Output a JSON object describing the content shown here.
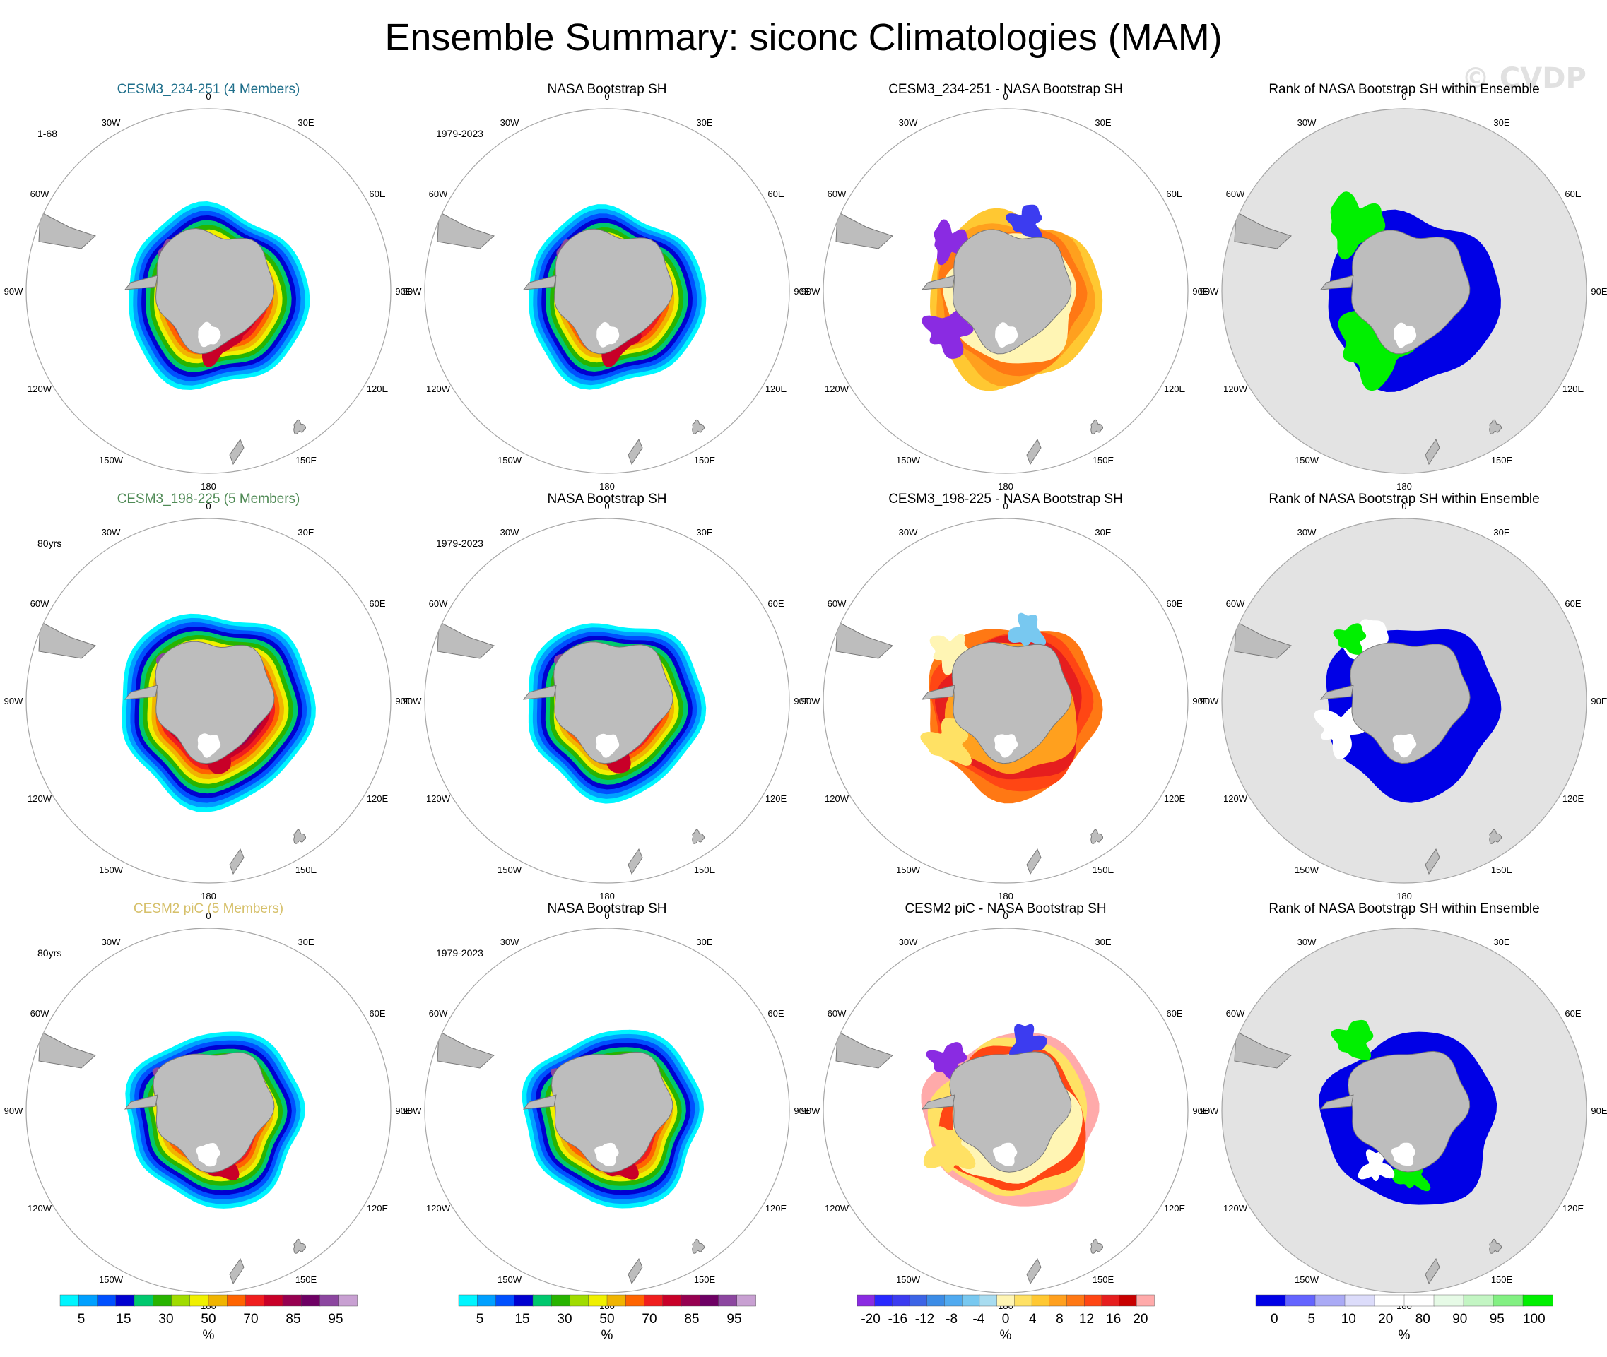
{
  "title": "Ensemble Summary: siconc Climatologies (MAM)",
  "watermark": "© CVDP",
  "colors": {
    "land": "#bdbdbd",
    "rank_background": "#e3e3e3",
    "title_row1": "#1f6f8b",
    "title_row2": "#4f8a55",
    "title_row3": "#d6c06a",
    "circle": "#a6a6a6"
  },
  "longitude_labels": [
    "0",
    "30E",
    "60E",
    "90E",
    "120E",
    "150E",
    "180",
    "150W",
    "120W",
    "90W",
    "60W",
    "30W"
  ],
  "chart_data": [
    {
      "type": "heatmap",
      "row": 1,
      "panels": [
        {
          "kind": "ensemble_mean",
          "title": "CESM3_234-251 (4 Members)",
          "period": "1-68",
          "title_color": "#1f6f8b",
          "extent_scale": 1.0,
          "variant": 1
        },
        {
          "kind": "observation",
          "title": "NASA Bootstrap SH",
          "period": "1979-2023",
          "variant": 1
        },
        {
          "kind": "difference",
          "title": "CESM3_234-251 - NASA Bootstrap SH",
          "variant": 1
        },
        {
          "kind": "rank",
          "title": "Rank of NASA Bootstrap SH within Ensemble",
          "variant": 1
        }
      ]
    },
    {
      "type": "heatmap",
      "row": 2,
      "panels": [
        {
          "kind": "ensemble_mean",
          "title": "CESM3_198-225 (5 Members)",
          "period": "80yrs",
          "title_color": "#4f8a55",
          "extent_scale": 1.07,
          "variant": 2
        },
        {
          "kind": "observation",
          "title": "NASA Bootstrap SH",
          "period": "1979-2023",
          "variant": 2
        },
        {
          "kind": "difference",
          "title": "CESM3_198-225 - NASA Bootstrap SH",
          "variant": 2
        },
        {
          "kind": "rank",
          "title": "Rank of NASA Bootstrap SH within Ensemble",
          "variant": 2
        }
      ]
    },
    {
      "type": "heatmap",
      "row": 3,
      "panels": [
        {
          "kind": "ensemble_mean",
          "title": "CESM2 piC (5 Members)",
          "period": "80yrs",
          "title_color": "#d6c06a",
          "extent_scale": 0.97,
          "variant": 3
        },
        {
          "kind": "observation",
          "title": "NASA Bootstrap SH",
          "period": "1979-2023",
          "variant": 3
        },
        {
          "kind": "difference",
          "title": "CESM2 piC - NASA Bootstrap SH",
          "variant": 3
        },
        {
          "kind": "rank",
          "title": "Rank of NASA Bootstrap SH within Ensemble",
          "variant": 3
        }
      ]
    }
  ],
  "colorbars": [
    {
      "name": "climatology",
      "unit": "%",
      "colors": [
        "#00f5ff",
        "#00a0ff",
        "#0050ff",
        "#0000d0",
        "#00c86e",
        "#28b400",
        "#a0dc00",
        "#f0f000",
        "#f0b400",
        "#ff6400",
        "#f01e1e",
        "#c80028",
        "#960050",
        "#6e0064",
        "#8c46a0",
        "#c8a0d2"
      ],
      "tick_labels": [
        "5",
        "15",
        "30",
        "50",
        "70",
        "85",
        "95"
      ]
    },
    {
      "name": "climatology_obs",
      "unit": "%",
      "colors": [
        "#00f5ff",
        "#00a0ff",
        "#0050ff",
        "#0000d0",
        "#00c86e",
        "#28b400",
        "#a0dc00",
        "#f0f000",
        "#f0b400",
        "#ff6400",
        "#f01e1e",
        "#c80028",
        "#960050",
        "#6e0064",
        "#8c46a0",
        "#c8a0d2"
      ],
      "tick_labels": [
        "5",
        "15",
        "30",
        "50",
        "70",
        "85",
        "95"
      ]
    },
    {
      "name": "difference",
      "unit": "%",
      "colors": [
        "#8a2be2",
        "#2828ff",
        "#3c3cf0",
        "#3c64e6",
        "#3c8ce6",
        "#50aaf0",
        "#78c8f0",
        "#a8dcf0",
        "#fff5b4",
        "#ffe164",
        "#ffc832",
        "#ffa01e",
        "#ff7814",
        "#ff4614",
        "#e61e1e",
        "#c80000",
        "#ffaaaa"
      ],
      "tick_labels": [
        "-20",
        "-16",
        "-12",
        "-8",
        "-4",
        "0",
        "4",
        "8",
        "12",
        "16",
        "20"
      ]
    },
    {
      "name": "rank",
      "unit": "%",
      "colors": [
        "#0000e6",
        "#6464ff",
        "#aaaaf5",
        "#dcdcfa",
        "#ffffff",
        "#ffffff",
        "#e6fae6",
        "#c3f5c3",
        "#82f082",
        "#00f000"
      ],
      "tick_labels": [
        "0",
        "5",
        "10",
        "20",
        "80",
        "90",
        "95",
        "100"
      ]
    }
  ]
}
